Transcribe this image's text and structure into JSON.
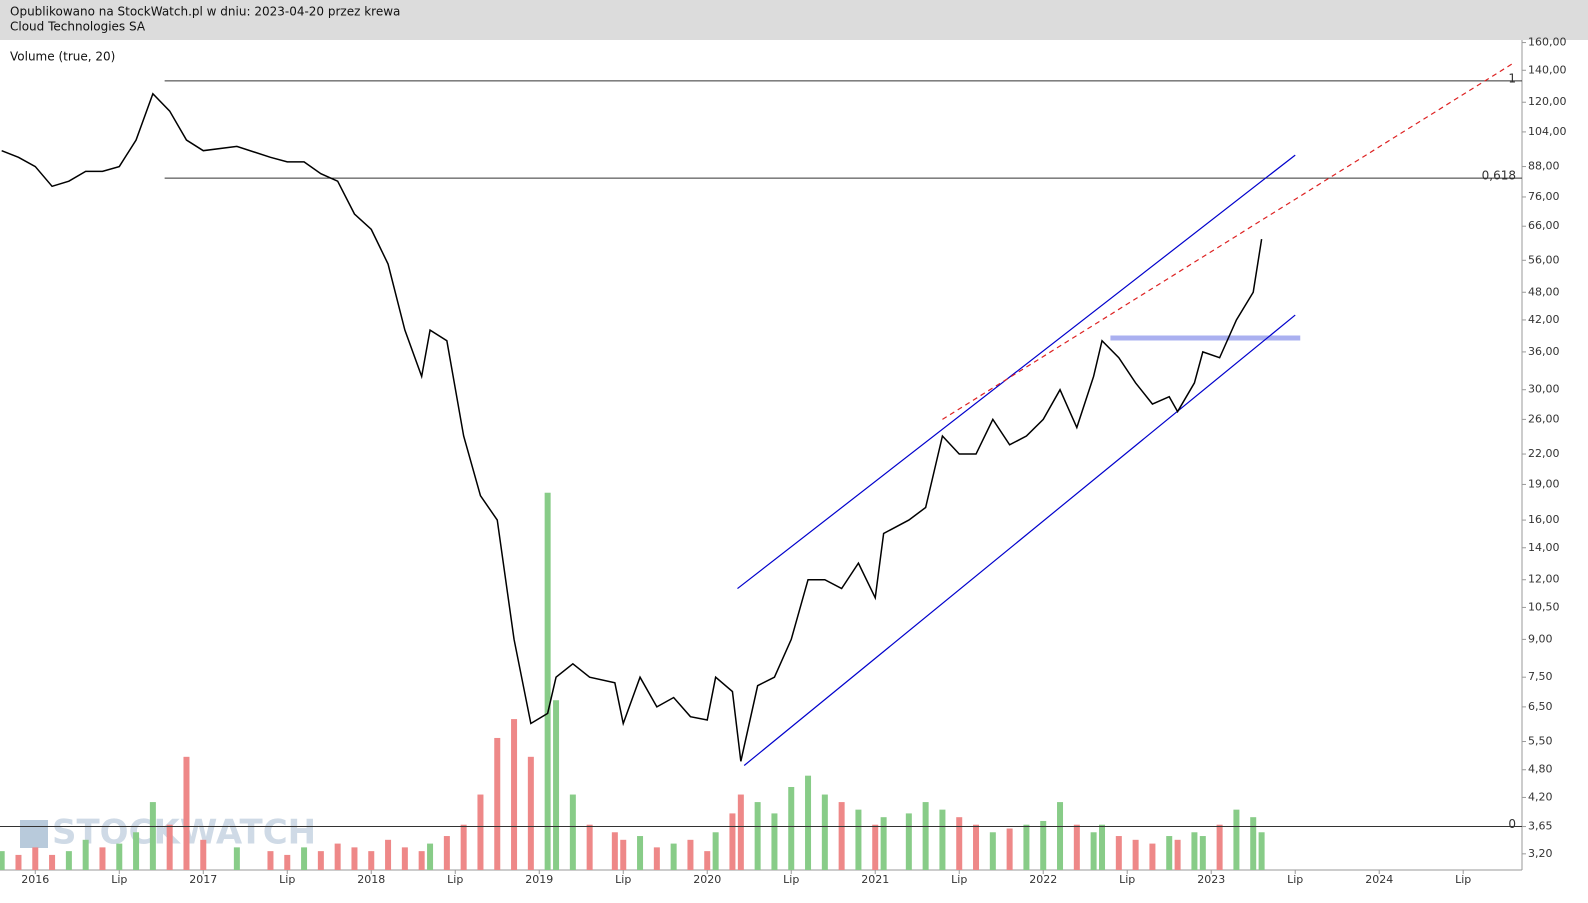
{
  "header": {
    "published": "Opublikowano na StockWatch.pl w dniu: 2023-04-20 przez krewa",
    "company": "Cloud Technologies SA"
  },
  "indicator_label": "Volume (true, 20)",
  "watermark": "STOCKWATCH",
  "chart_data": {
    "type": "line",
    "log_scale": true,
    "color": "#000000",
    "x": [
      2015.8,
      2015.9,
      2016.0,
      2016.1,
      2016.2,
      2016.3,
      2016.4,
      2016.5,
      2016.6,
      2016.7,
      2016.8,
      2016.9,
      2017.0,
      2017.2,
      2017.4,
      2017.5,
      2017.6,
      2017.7,
      2017.8,
      2017.9,
      2018.0,
      2018.1,
      2018.2,
      2018.3,
      2018.35,
      2018.45,
      2018.55,
      2018.65,
      2018.75,
      2018.85,
      2018.95,
      2019.05,
      2019.1,
      2019.2,
      2019.3,
      2019.45,
      2019.5,
      2019.6,
      2019.7,
      2019.8,
      2019.9,
      2020.0,
      2020.05,
      2020.15,
      2020.2,
      2020.3,
      2020.4,
      2020.5,
      2020.6,
      2020.7,
      2020.8,
      2020.9,
      2021.0,
      2021.05,
      2021.2,
      2021.3,
      2021.4,
      2021.5,
      2021.6,
      2021.7,
      2021.8,
      2021.9,
      2022.0,
      2022.1,
      2022.2,
      2022.3,
      2022.35,
      2022.45,
      2022.55,
      2022.65,
      2022.75,
      2022.8,
      2022.9,
      2022.95,
      2023.05,
      2023.15,
      2023.25,
      2023.3
    ],
    "values": [
      95,
      92,
      88,
      80,
      82,
      86,
      86,
      88,
      100,
      125,
      115,
      100,
      95,
      97,
      92,
      90,
      90,
      85,
      82,
      70,
      65,
      55,
      40,
      32,
      40,
      38,
      24,
      18,
      16,
      9,
      6,
      6.3,
      7.5,
      8,
      7.5,
      7.3,
      6,
      7.5,
      6.5,
      6.8,
      6.2,
      6.1,
      7.5,
      7,
      5,
      7.2,
      7.5,
      9,
      12,
      12,
      11.5,
      13,
      11,
      15,
      16,
      17,
      24,
      22,
      22,
      26,
      23,
      24,
      26,
      30,
      25,
      32,
      38,
      35,
      31,
      28,
      29,
      27,
      31,
      36,
      35,
      42,
      48,
      62
    ],
    "volume": [
      5,
      4,
      6,
      4,
      5,
      8,
      6,
      7,
      10,
      18,
      12,
      30,
      8,
      6,
      5,
      4,
      6,
      5,
      7,
      6,
      5,
      8,
      6,
      5,
      7,
      9,
      12,
      20,
      35,
      40,
      30,
      100,
      45,
      20,
      12,
      10,
      8,
      9,
      6,
      7,
      8,
      5,
      10,
      15,
      20,
      18,
      15,
      22,
      25,
      20,
      18,
      16,
      12,
      14,
      15,
      18,
      16,
      14,
      12,
      10,
      11,
      12,
      13,
      18,
      12,
      10,
      12,
      9,
      8,
      7,
      9,
      8,
      10,
      9,
      12,
      16,
      14,
      10
    ],
    "volume_colors": [
      "#8c8",
      "#e88",
      "#e88",
      "#e88",
      "#8c8",
      "#8c8",
      "#e88",
      "#8c8",
      "#8c8",
      "#8c8",
      "#e88",
      "#e88",
      "#e88",
      "#8c8",
      "#e88",
      "#e88",
      "#8c8",
      "#e88",
      "#e88",
      "#e88",
      "#e88",
      "#e88",
      "#e88",
      "#e88",
      "#8c8",
      "#e88",
      "#e88",
      "#e88",
      "#e88",
      "#e88",
      "#e88",
      "#8c8",
      "#8c8",
      "#8c8",
      "#e88",
      "#e88",
      "#e88",
      "#8c8",
      "#e88",
      "#8c8",
      "#e88",
      "#e88",
      "#8c8",
      "#e88",
      "#e88",
      "#8c8",
      "#8c8",
      "#8c8",
      "#8c8",
      "#8c8",
      "#e88",
      "#8c8",
      "#e88",
      "#8c8",
      "#8c8",
      "#8c8",
      "#8c8",
      "#e88",
      "#e88",
      "#8c8",
      "#e88",
      "#8c8",
      "#8c8",
      "#8c8",
      "#e88",
      "#8c8",
      "#8c8",
      "#e88",
      "#e88",
      "#e88",
      "#8c8",
      "#e88",
      "#8c8",
      "#8c8",
      "#e88",
      "#8c8",
      "#8c8",
      "#8c8"
    ],
    "vlim": [
      0,
      220
    ],
    "xlim": [
      2015.79,
      2024.85
    ],
    "ylim": [
      2.96,
      162
    ],
    "xticks": [
      {
        "value": 2016,
        "label": "2016"
      },
      {
        "value": 2016.5,
        "label": "Lip"
      },
      {
        "value": 2017,
        "label": "2017"
      },
      {
        "value": 2017.5,
        "label": "Lip"
      },
      {
        "value": 2018,
        "label": "2018"
      },
      {
        "value": 2018.5,
        "label": "Lip"
      },
      {
        "value": 2019,
        "label": "2019"
      },
      {
        "value": 2019.5,
        "label": "Lip"
      },
      {
        "value": 2020,
        "label": "2020"
      },
      {
        "value": 2020.5,
        "label": "Lip"
      },
      {
        "value": 2021,
        "label": "2021"
      },
      {
        "value": 2021.5,
        "label": "Lip"
      },
      {
        "value": 2022,
        "label": "2022"
      },
      {
        "value": 2022.5,
        "label": "Lip"
      },
      {
        "value": 2023,
        "label": "2023"
      },
      {
        "value": 2023.5,
        "label": "Lip"
      },
      {
        "value": 2024,
        "label": "2024"
      },
      {
        "value": 2024.5,
        "label": "Lip"
      }
    ],
    "yticks": [
      {
        "value": 160,
        "label": "160,00"
      },
      {
        "value": 140,
        "label": "140,00"
      },
      {
        "value": 120,
        "label": "120,00"
      },
      {
        "value": 104,
        "label": "104,00"
      },
      {
        "value": 88,
        "label": "88,00"
      },
      {
        "value": 76,
        "label": "76,00"
      },
      {
        "value": 66,
        "label": "66,00"
      },
      {
        "value": 56,
        "label": "56,00"
      },
      {
        "value": 48,
        "label": "48,00"
      },
      {
        "value": 42,
        "label": "42,00"
      },
      {
        "value": 36,
        "label": "36,00"
      },
      {
        "value": 30,
        "label": "30,00"
      },
      {
        "value": 26,
        "label": "26,00"
      },
      {
        "value": 22,
        "label": "22,00"
      },
      {
        "value": 19,
        "label": "19,00"
      },
      {
        "value": 16,
        "label": "16,00"
      },
      {
        "value": 14,
        "label": "14,00"
      },
      {
        "value": 12,
        "label": "12,00"
      },
      {
        "value": 10.5,
        "label": "10,50"
      },
      {
        "value": 9,
        "label": "9,00"
      },
      {
        "value": 7.5,
        "label": "7,50"
      },
      {
        "value": 6.5,
        "label": "6,50"
      },
      {
        "value": 5.5,
        "label": "5,50"
      },
      {
        "value": 4.8,
        "label": "4,80"
      },
      {
        "value": 4.2,
        "label": "4,20"
      },
      {
        "value": 3.65,
        "label": "3,65"
      },
      {
        "value": 3.2,
        "label": "3,20"
      }
    ],
    "fib_levels": [
      {
        "value": 133,
        "label": "1",
        "x0": 2016.77
      },
      {
        "value": 83.2,
        "label": {
          "value": 0.618,
          "label": "0,618"
        },
        "x0": 2016.77
      },
      {
        "value": 3.65,
        "label": "0",
        "x0": 2015.79
      }
    ],
    "trend_lines": [
      {
        "color": "#0000cc",
        "dashed": false,
        "x": [
          2020.18,
          2023.5
        ],
        "y": [
          11.5,
          93
        ]
      },
      {
        "color": "#0000cc",
        "dashed": false,
        "x": [
          2020.22,
          2023.5
        ],
        "y": [
          4.9,
          43
        ]
      },
      {
        "color": "#dd2222",
        "dashed": true,
        "x": [
          2021.4,
          2024.8
        ],
        "y": [
          26,
          145
        ]
      }
    ],
    "band": {
      "color": "#aab0f0",
      "x": [
        2022.4,
        2023.53
      ],
      "value": 38.5
    }
  }
}
